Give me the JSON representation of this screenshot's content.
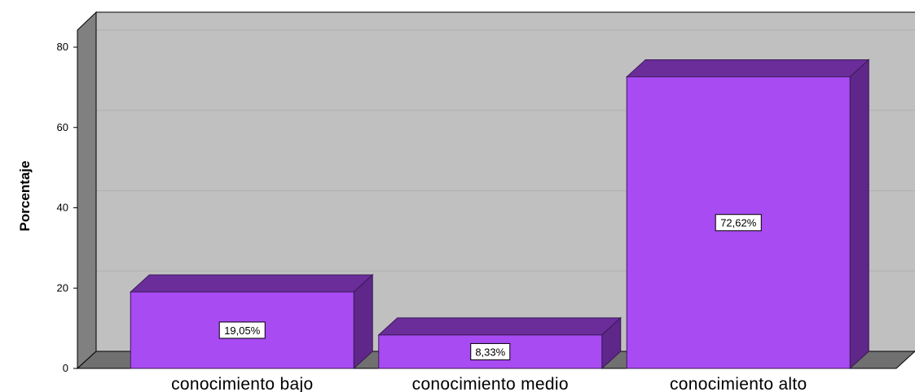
{
  "chart_data": {
    "type": "bar",
    "categories": [
      "conocimiento bajo",
      "conocimiento medio",
      "conocimiento alto"
    ],
    "values": [
      19.05,
      8.33,
      72.62
    ],
    "data_labels": [
      "19,05%",
      "8,33%",
      "72,62%"
    ],
    "ylabel": "Porcentaje",
    "xlabel": "",
    "ylim": [
      0,
      85
    ],
    "yticks": [
      "0",
      "20",
      "40",
      "60",
      "80"
    ],
    "grid": true,
    "legend": "none",
    "style": "3d",
    "colors": {
      "bar_front": "#A84BF3",
      "bar_top": "#6A2D9A",
      "bar_side": "#5E2789",
      "plot_back": "#C0C0C0",
      "wall_left": "#808080",
      "floor": "#707070",
      "gridline": "#AFAFAF"
    }
  }
}
